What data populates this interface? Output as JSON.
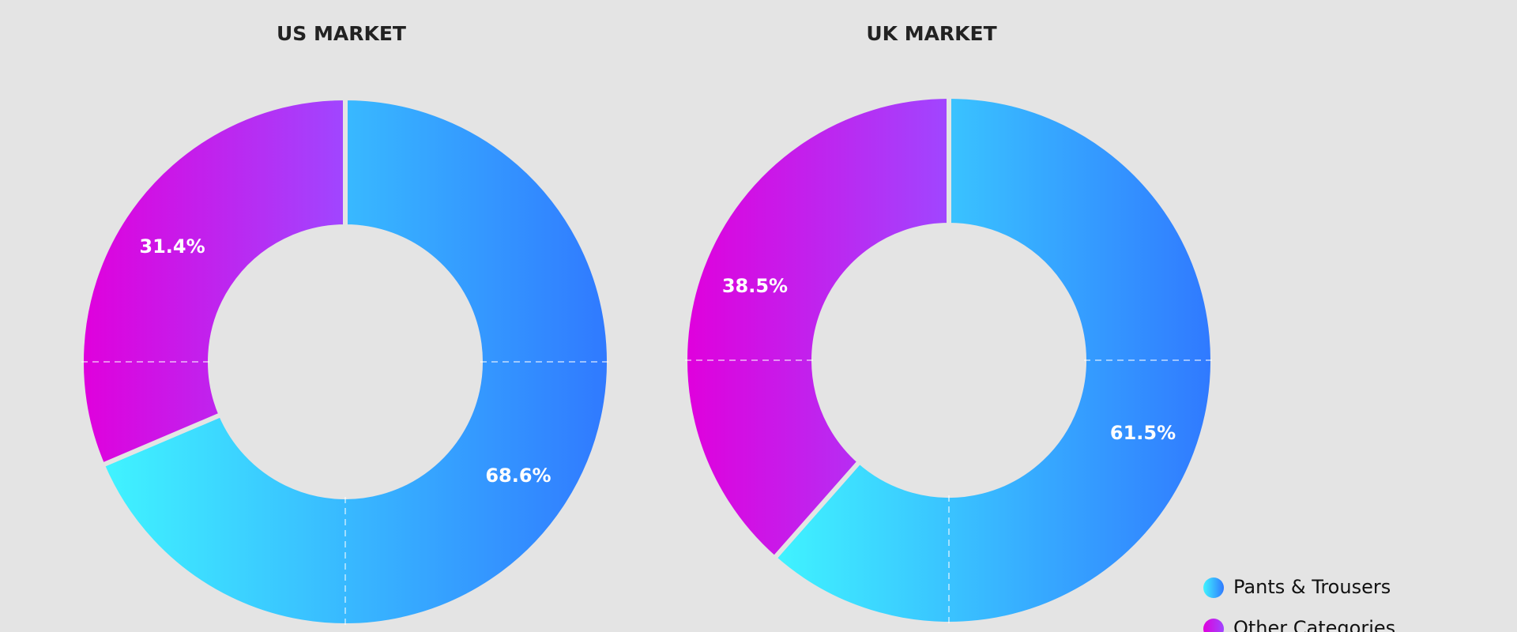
{
  "chart_data": [
    {
      "type": "donut",
      "title": "US MARKET",
      "values": [
        68.6,
        31.4
      ],
      "value_labels": [
        "68.6%",
        "31.4%"
      ],
      "colors": [
        [
          "#40f4ff",
          "#3079ff"
        ],
        [
          "#e000dc",
          "#a046ff"
        ]
      ]
    },
    {
      "type": "donut",
      "title": "UK MARKET",
      "categories": [
        "Pants & Trousers",
        "Other Categories"
      ],
      "values": [
        61.5,
        38.5
      ],
      "value_labels": [
        "61.5%",
        "38.5%"
      ],
      "colors": [
        [
          "#40f4ff",
          "#3079ff"
        ],
        [
          "#e000dc",
          "#a046ff"
        ]
      ],
      "legend": "lower right"
    }
  ]
}
